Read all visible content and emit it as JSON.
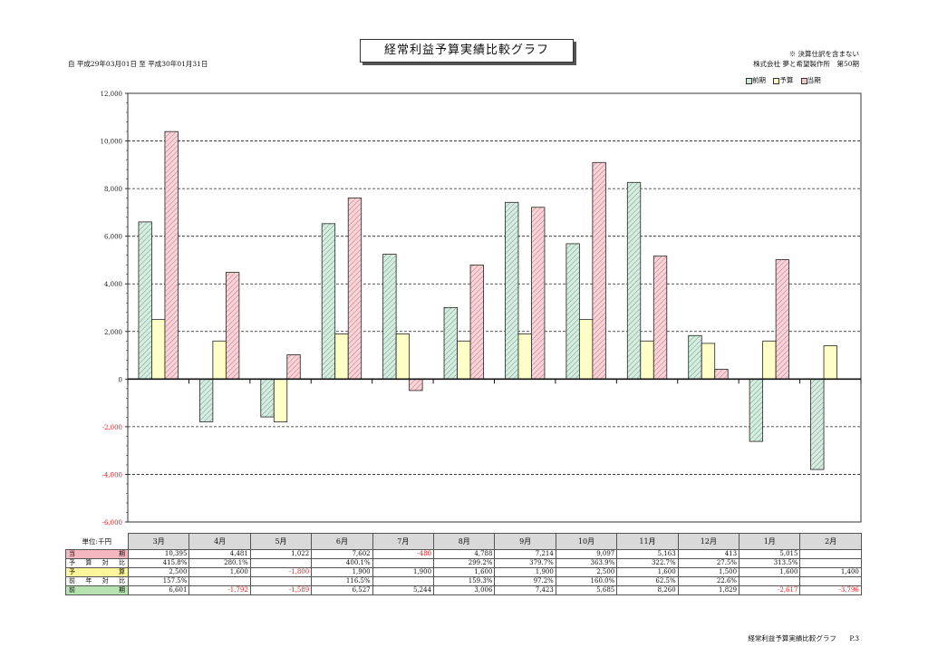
{
  "header": {
    "title": "経常利益予算実績比較グラフ",
    "period": "自 平成29年03月01日 至 平成30年01月31日",
    "note": "※ 決算仕訳を含まない",
    "company": "株式会社 夢と希望製作所　第50期"
  },
  "legend": [
    {
      "label": "前期",
      "color": "#cfe8da"
    },
    {
      "label": "予算",
      "color": "#ffffc8"
    },
    {
      "label": "当期",
      "color": "#f5c6cc"
    }
  ],
  "chart_data": {
    "type": "bar",
    "categories": [
      "3月",
      "4月",
      "5月",
      "6月",
      "7月",
      "8月",
      "9月",
      "10月",
      "11月",
      "12月",
      "1月",
      "2月"
    ],
    "series": [
      {
        "name": "前期",
        "values": [
          6601,
          -1792,
          -1589,
          6527,
          5244,
          3006,
          7423,
          5685,
          8260,
          1829,
          -2617,
          -3796
        ]
      },
      {
        "name": "予算",
        "values": [
          2500,
          1600,
          -1800,
          1900,
          1900,
          1600,
          1900,
          2500,
          1600,
          1500,
          1600,
          1400
        ]
      },
      {
        "name": "当期",
        "values": [
          10395,
          4481,
          1022,
          7602,
          -480,
          4788,
          7214,
          9097,
          5163,
          413,
          5015,
          null
        ]
      }
    ],
    "yticks": [
      "12,000",
      "10,000",
      "8,000",
      "6,000",
      "4,000",
      "2,000",
      "0",
      "-2,000",
      "-4,000",
      "-6,000"
    ],
    "ylim": [
      -6000,
      12000
    ],
    "grid": true,
    "legend_position": "top-right",
    "series_colors": {
      "前期": "#cfe8da",
      "予算": "#ffffc8",
      "当期": "#f5c6cc"
    }
  },
  "table": {
    "unit": "単位:千円",
    "months": [
      "3月",
      "4月",
      "5月",
      "6月",
      "7月",
      "8月",
      "9月",
      "10月",
      "11月",
      "12月",
      "1月",
      "2月"
    ],
    "rows": [
      {
        "label": "当　期",
        "bg": "#f4b6bf",
        "cells": [
          "10,395",
          "4,481",
          "1,022",
          "7,602",
          "-480",
          "4,788",
          "7,214",
          "9,097",
          "5,163",
          "413",
          "5,015",
          ""
        ]
      },
      {
        "label": "予算対比",
        "bg": "#ffffff",
        "cells": [
          "415.8%",
          "280.1%",
          "",
          "400.1%",
          "",
          "299.2%",
          "379.7%",
          "363.9%",
          "322.7%",
          "27.5%",
          "313.5%",
          ""
        ]
      },
      {
        "label": "予　算",
        "bg": "#fff59a",
        "cells": [
          "2,500",
          "1,600",
          "-1,800",
          "1,900",
          "1,900",
          "1,600",
          "1,900",
          "2,500",
          "1,600",
          "1,500",
          "1,600",
          "1,400"
        ]
      },
      {
        "label": "前年対比",
        "bg": "#ffffff",
        "cells": [
          "157.5%",
          "",
          "",
          "116.5%",
          "",
          "159.3%",
          "97.2%",
          "160.0%",
          "62.5%",
          "22.6%",
          "",
          ""
        ]
      },
      {
        "label": "前　期",
        "bg": "#b6e3b0",
        "cells": [
          "6,601",
          "-1,792",
          "-1,589",
          "6,527",
          "5,244",
          "3,006",
          "7,423",
          "5,685",
          "8,260",
          "1,829",
          "-2,617",
          "-3,796"
        ]
      }
    ]
  },
  "footer": {
    "title": "経常利益予算実績比較グラフ",
    "page": "P.3"
  }
}
